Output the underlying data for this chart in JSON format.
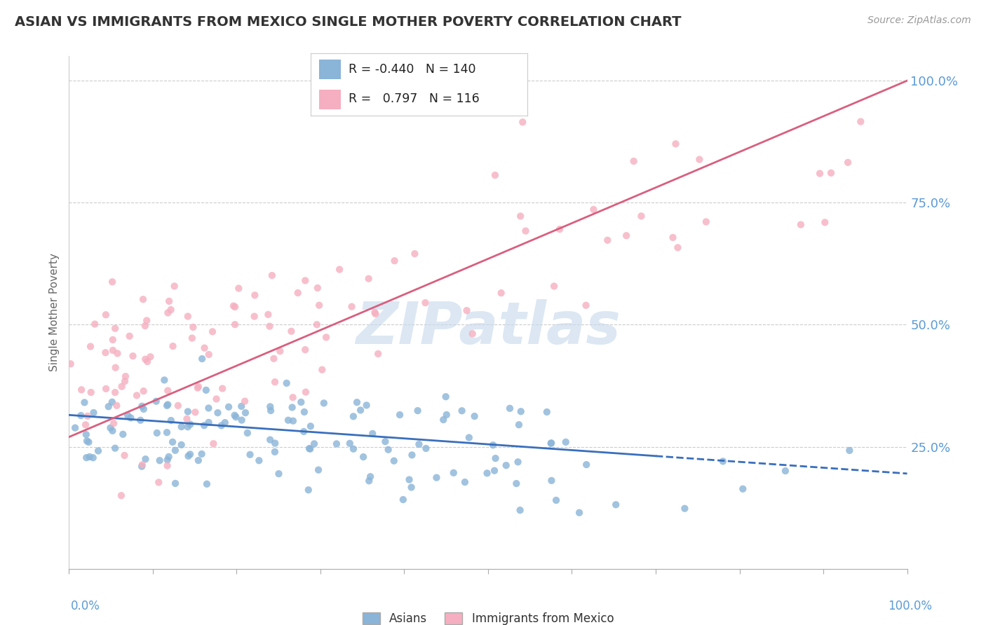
{
  "title": "ASIAN VS IMMIGRANTS FROM MEXICO SINGLE MOTHER POVERTY CORRELATION CHART",
  "source": "Source: ZipAtlas.com",
  "ylabel": "Single Mother Poverty",
  "legend_r_asian": "-0.440",
  "legend_n_asian": "140",
  "legend_r_mexico": "0.797",
  "legend_n_mexico": "116",
  "legend_label_asian": "Asians",
  "legend_label_mexico": "Immigrants from Mexico",
  "asian_color": "#8ab4d8",
  "mexico_color": "#f5afc0",
  "asian_line_color": "#3a6fbc",
  "mexico_line_color": "#d95f7f",
  "tick_color": "#5b9bd5",
  "title_color": "#333333",
  "background_color": "#ffffff",
  "xlim": [
    0.0,
    1.0
  ],
  "ylim": [
    0.0,
    1.05
  ],
  "ytick_labels": [
    "25.0%",
    "50.0%",
    "75.0%",
    "100.0%"
  ],
  "ytick_values": [
    0.25,
    0.5,
    0.75,
    1.0
  ],
  "asian_line_start_y": 0.315,
  "asian_line_end_y": 0.195,
  "mexico_line_start_y": 0.27,
  "mexico_line_end_y": 1.0,
  "asian_line_solid_end": 0.7,
  "asian_line_dash_end": 1.0,
  "watermark_text": "ZIPatlas",
  "watermark_color": "#c5d8ec",
  "watermark_alpha": 0.6
}
